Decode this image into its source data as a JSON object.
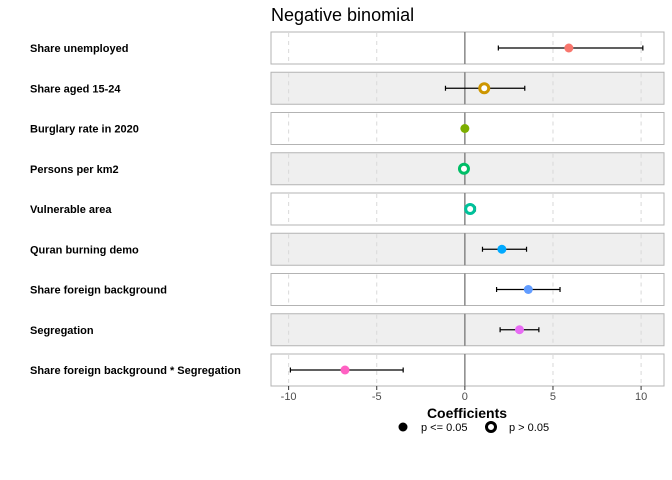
{
  "chart_data": {
    "type": "scatter",
    "title": "Negative binomial",
    "xlabel": "Coefficients",
    "ylabel": "",
    "xlim": [
      -11,
      11.3
    ],
    "xticks": [
      -10,
      -5,
      0,
      5,
      10
    ],
    "xtick_labels": [
      "-10",
      "-5",
      "0",
      "5",
      "10"
    ],
    "reference_line": 0,
    "grid": true,
    "legend_position": "bottom",
    "legend": [
      {
        "label": "p <= 0.05",
        "marker": "filled"
      },
      {
        "label": "p > 0.05",
        "marker": "hollow"
      }
    ],
    "series": [
      {
        "label": "Share unemployed",
        "estimate": 5.9,
        "lower": 1.9,
        "upper": 10.1,
        "significant": true,
        "color": "#F8766D",
        "shaded": false
      },
      {
        "label": "Share aged 15-24",
        "estimate": 1.1,
        "lower": -1.1,
        "upper": 3.4,
        "significant": false,
        "color": "#CD9600",
        "shaded": true
      },
      {
        "label": "Burglary rate in 2020",
        "estimate": 0.0,
        "lower": 0.0,
        "upper": 0.0,
        "significant": true,
        "color": "#7CAE00",
        "shaded": false
      },
      {
        "label": "Persons per km2",
        "estimate": -0.05,
        "lower": -0.05,
        "upper": -0.05,
        "significant": false,
        "color": "#00BE67",
        "shaded": true
      },
      {
        "label": "Vulnerable area",
        "estimate": 0.3,
        "lower": 0.1,
        "upper": 0.6,
        "significant": false,
        "color": "#00C19A",
        "shaded": false
      },
      {
        "label": "Quran burning demo",
        "estimate": 2.1,
        "lower": 1.0,
        "upper": 3.5,
        "significant": true,
        "color": "#00A9FF",
        "shaded": true
      },
      {
        "label": "Share foreign background",
        "estimate": 3.6,
        "lower": 1.8,
        "upper": 5.4,
        "significant": true,
        "color": "#619CFF",
        "shaded": false
      },
      {
        "label": "Segregation",
        "estimate": 3.1,
        "lower": 2.0,
        "upper": 4.2,
        "significant": true,
        "color": "#E76BF3",
        "shaded": true
      },
      {
        "label": "Share foreign background * Segregation",
        "estimate": -6.8,
        "lower": -9.9,
        "upper": -3.5,
        "significant": true,
        "color": "#FF61C3",
        "shaded": false
      }
    ]
  }
}
